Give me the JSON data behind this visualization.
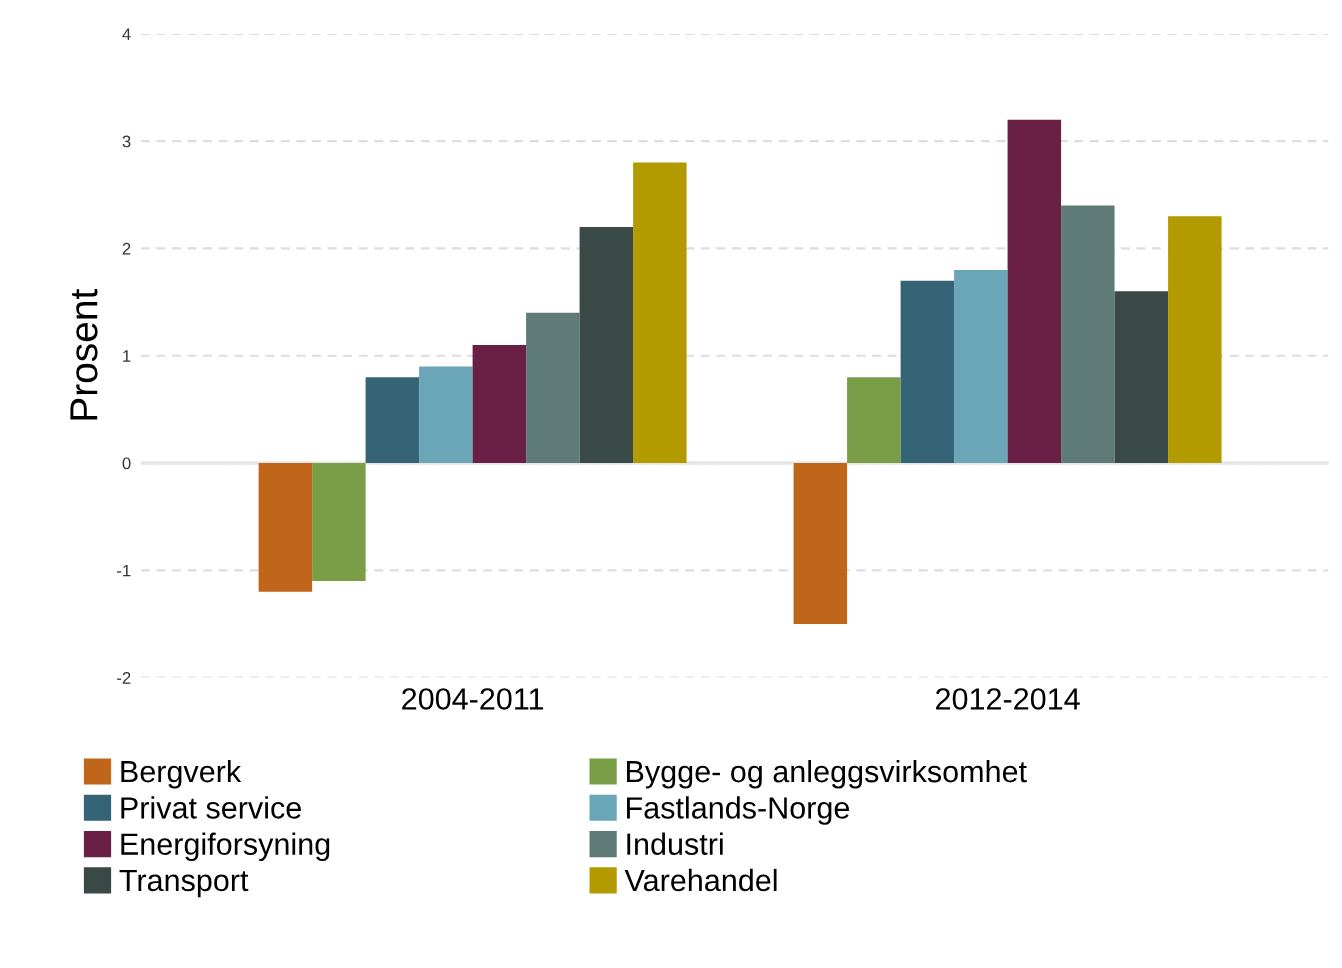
{
  "chart_data": {
    "type": "bar",
    "ylabel": "Prosent",
    "categories": [
      "2004-2011",
      "2012-2014"
    ],
    "series": [
      {
        "name": "Bergverk",
        "color": "#c0661a",
        "values": [
          -1.2,
          -1.5
        ]
      },
      {
        "name": "Bygge- og anleggsvirksomhet",
        "color": "#7a9e48",
        "values": [
          -1.1,
          0.8
        ]
      },
      {
        "name": "Privat service",
        "color": "#356476",
        "values": [
          0.8,
          1.7
        ]
      },
      {
        "name": "Fastlands-Norge",
        "color": "#6aa5b8",
        "values": [
          0.9,
          1.8
        ]
      },
      {
        "name": "Energiforsyning",
        "color": "#6a1f45",
        "values": [
          1.1,
          3.2
        ]
      },
      {
        "name": "Industri",
        "color": "#5e7b77",
        "values": [
          1.4,
          2.4
        ]
      },
      {
        "name": "Transport",
        "color": "#394946",
        "values": [
          2.2,
          1.6
        ]
      },
      {
        "name": "Varehandel",
        "color": "#b39a00",
        "values": [
          2.8,
          2.3
        ]
      }
    ],
    "ylim": [
      -2,
      4
    ],
    "yticks": [
      -2,
      -1,
      0,
      1,
      2,
      3,
      4
    ],
    "grid": "y",
    "legend": "bottom"
  }
}
